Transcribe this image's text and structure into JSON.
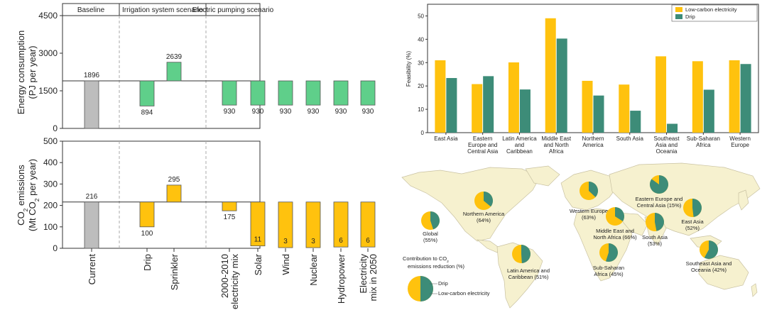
{
  "colors": {
    "baseline": "#bdbdbd",
    "irrigation": "#5fcf8a",
    "solar_bar": "#ffc20e",
    "low_carbon": "#ffc20e",
    "drip": "#3d8c78",
    "land": "#f6f1cf",
    "sea": "#ffffff",
    "border": "#c9c2a2"
  },
  "left_panel": {
    "scenario_headers": [
      "Baseline",
      "Irrigation system scenario",
      "Electric pumping scenario"
    ],
    "categories": [
      "Current",
      "Drip",
      "Sprinkler",
      "2000-2010 electricity mix",
      "Solar",
      "Wind",
      "Nuclear",
      "Hydropower",
      "Electricity mix in 2050"
    ],
    "category_lines": [
      [
        "Current"
      ],
      [
        "Drip"
      ],
      [
        "Sprinkler"
      ],
      [
        "2000-2010",
        "electricity mix"
      ],
      [
        "Solar"
      ],
      [
        "Wind"
      ],
      [
        "Nuclear"
      ],
      [
        "Hydropower"
      ],
      [
        "Electricity",
        "mix in 2050"
      ]
    ],
    "energy_ylabel_lines": [
      "Energy consumption",
      "(PJ per year)"
    ],
    "co2_ylabel_lines": [
      "CO2 emissions",
      "(Mt CO2 per year)"
    ]
  },
  "chart_data": [
    {
      "type": "bar",
      "title": "",
      "categories": [
        "Current",
        "Drip",
        "Sprinkler",
        "2000-2010 electricity mix",
        "Solar",
        "Wind",
        "Nuclear",
        "Hydropower",
        "Electricity mix in 2050"
      ],
      "values": [
        1896,
        894,
        2639,
        930,
        930,
        930,
        930,
        930,
        930
      ],
      "value_labels": [
        "1896",
        "894",
        "2639",
        "930",
        "930",
        "930",
        "930",
        "930",
        "930"
      ],
      "baseline": 1896,
      "ylabel": "Energy consumption (PJ per year)",
      "ylim": [
        0,
        4500
      ],
      "yticks": [
        0,
        1500,
        3000,
        4500
      ],
      "ytick_labels": [
        "0",
        "1500",
        "3000",
        "4500"
      ]
    },
    {
      "type": "bar",
      "title": "",
      "categories": [
        "Current",
        "Drip",
        "Sprinkler",
        "2000-2010 electricity mix",
        "Solar",
        "Wind",
        "Nuclear",
        "Hydropower",
        "Electricity mix in 2050"
      ],
      "values": [
        216,
        100,
        295,
        175,
        11,
        3,
        3,
        6,
        6
      ],
      "value_labels": [
        "216",
        "100",
        "295",
        "175",
        "11",
        "3",
        "3",
        "6",
        "6"
      ],
      "baseline": 216,
      "ylabel": "CO2 emissions (Mt CO2 per year)",
      "ylim": [
        0,
        500
      ],
      "yticks": [
        0,
        100,
        200,
        300,
        400,
        500
      ],
      "ytick_labels": [
        "0",
        "100",
        "200",
        "300",
        "400",
        "500"
      ]
    },
    {
      "type": "bar",
      "title": "",
      "categories": [
        "East Asia",
        "Eastern Europe and Central Asia",
        "Latin America and Caribbean",
        "Middle East and North Africa",
        "Northern America",
        "South Asia",
        "Southeast Asia and Oceania",
        "Sub-Saharan Africa",
        "Western Europe"
      ],
      "category_lines": [
        [
          "East Asia"
        ],
        [
          "Eastern",
          "Europe and",
          "Central Asia"
        ],
        [
          "Latin America",
          "and",
          "Caribbean"
        ],
        [
          "Middle East",
          "and North",
          "Africa"
        ],
        [
          "Northern",
          "America"
        ],
        [
          "South Asia"
        ],
        [
          "Southeast",
          "Asia and",
          "Oceania"
        ],
        [
          "Sub-Saharan",
          "Africa"
        ],
        [
          "Western",
          "Europe"
        ]
      ],
      "series": [
        {
          "name": "Low-carbon electricity",
          "values": [
            31,
            20.8,
            30.1,
            49,
            22.2,
            20.6,
            32.7,
            30.6,
            31
          ]
        },
        {
          "name": "Drip",
          "values": [
            23.4,
            24.2,
            18.5,
            40.3,
            15.9,
            9.4,
            3.8,
            18.4,
            29.4
          ]
        }
      ],
      "ylabel": "Feasibility (%)",
      "ylim": [
        0,
        55
      ],
      "yticks": [
        0,
        10,
        20,
        30,
        40,
        50
      ],
      "ytick_labels": [
        "0",
        "10",
        "20",
        "30",
        "40",
        "50"
      ],
      "legend": "top-right"
    },
    {
      "type": "pie",
      "title": "",
      "legend_title_lines": [
        "Contribution to CO2",
        "emissions reduction (%)"
      ],
      "legend_items": [
        "Drip",
        "Low-carbon electricity"
      ],
      "regions": [
        {
          "label_lines": [
            "Global",
            "(55%)"
          ],
          "drip": 45
        },
        {
          "label_lines": [
            "Northern America",
            "(64%)"
          ],
          "drip": 36
        },
        {
          "label_lines": [
            "Latin America and",
            "Caribbean (51%)"
          ],
          "drip": 49
        },
        {
          "label_lines": [
            "Western Europe",
            "(63%)"
          ],
          "drip": 37
        },
        {
          "label_lines": [
            "Middle East and",
            "North Africa (66%)"
          ],
          "drip": 34
        },
        {
          "label_lines": [
            "Sub-Saharan",
            "Africa (45%)"
          ],
          "drip": 55
        },
        {
          "label_lines": [
            "Eastern Europe and",
            "Central Asia (15%)"
          ],
          "drip": 85
        },
        {
          "label_lines": [
            "South Asia",
            "(53%)"
          ],
          "drip": 47
        },
        {
          "label_lines": [
            "East Asia",
            "(52%)"
          ],
          "drip": 48
        },
        {
          "label_lines": [
            "Southeast Asia and",
            "Oceania (42%)"
          ],
          "drip": 58
        }
      ]
    }
  ]
}
